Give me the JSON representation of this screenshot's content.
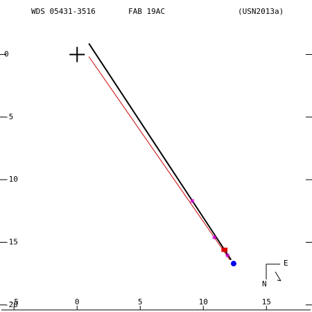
{
  "chart_data": {
    "type": "scatter",
    "title": "WDS 05431-3516",
    "subtitle": "FAB  19AC",
    "reference": "(USN2013a)",
    "annotations": [
      "E",
      "N"
    ],
    "xlim": [
      -6,
      18.5
    ],
    "ylim": [
      -20.4,
      4.35
    ],
    "xticks": [
      -5,
      0,
      5,
      10,
      15
    ],
    "yticks": [
      0,
      -5,
      -10,
      -15,
      -20
    ],
    "series": [
      {
        "color": "#000000",
        "marker": "line",
        "x": [
          0.93,
          12.2
        ],
        "values": [
          0.88,
          -16.4
        ]
      },
      {
        "color": "#cc0000",
        "marker": "line",
        "x": [
          0.93,
          12.1
        ],
        "values": [
          -0.17,
          -16.4
        ]
      },
      {
        "color": "#cc00cc",
        "marker": "asterisk",
        "x": [
          9.12,
          10.88,
          11.92
        ],
        "values": [
          -11.7,
          -14.6,
          -16.05
        ]
      },
      {
        "color": "#dd0000",
        "marker": "square",
        "x": [
          11.6,
          11.75
        ],
        "values": [
          -15.6,
          -15.6
        ]
      },
      {
        "color": "#0000ee",
        "marker": "circle",
        "x": [
          12.4
        ],
        "values": [
          -16.7
        ]
      },
      {
        "color": "#000000",
        "marker": "plus",
        "x": [
          0
        ],
        "values": [
          0
        ]
      }
    ]
  }
}
